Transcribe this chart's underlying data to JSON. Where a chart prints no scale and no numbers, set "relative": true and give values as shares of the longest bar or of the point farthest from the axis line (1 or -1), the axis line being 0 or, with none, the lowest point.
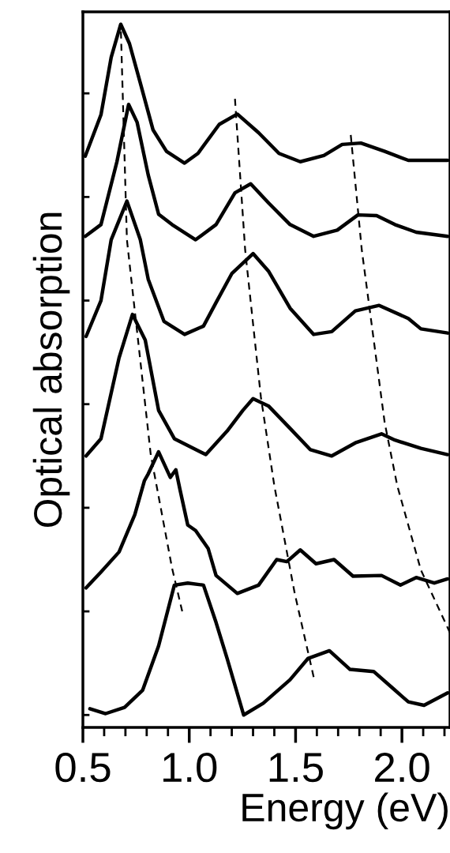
{
  "chart_data": {
    "type": "line",
    "xlabel": "Energy (eV)",
    "ylabel": "Optical absorption",
    "relative": true,
    "xlim": [
      0.5,
      2.226
    ],
    "xticks": [
      {
        "value": 0.5,
        "label": "0.5"
      },
      {
        "value": 1.0,
        "label": "1.0"
      },
      {
        "value": 1.5,
        "label": "1.5"
      },
      {
        "value": 2.0,
        "label": "2.0"
      }
    ],
    "tick_labels": "x",
    "grid": false,
    "marker": "none",
    "line_style": "solid",
    "series": [
      {
        "color": "#000000",
        "x": [
          0.511,
          0.585,
          0.633,
          0.678,
          0.719,
          0.77,
          0.83,
          0.893,
          0.978,
          1.041,
          1.141,
          1.226,
          1.326,
          1.422,
          1.522,
          1.633,
          1.719,
          1.807,
          1.919,
          2.03,
          2.215
        ],
        "values": [
          0.809,
          0.869,
          0.952,
          1.0,
          0.972,
          0.915,
          0.847,
          0.816,
          0.799,
          0.813,
          0.855,
          0.87,
          0.843,
          0.813,
          0.801,
          0.81,
          0.826,
          0.828,
          0.816,
          0.803,
          0.803
        ]
      },
      {
        "color": "#000000",
        "x": [
          0.511,
          0.585,
          0.66,
          0.715,
          0.755,
          0.807,
          0.856,
          0.919,
          1.03,
          1.126,
          1.215,
          1.289,
          1.374,
          1.474,
          1.585,
          1.696,
          1.793,
          1.881,
          1.967,
          2.067,
          2.215
        ],
        "values": [
          0.693,
          0.71,
          0.801,
          0.884,
          0.858,
          0.782,
          0.725,
          0.71,
          0.688,
          0.71,
          0.756,
          0.769,
          0.741,
          0.71,
          0.693,
          0.702,
          0.724,
          0.723,
          0.71,
          0.699,
          0.693
        ]
      },
      {
        "color": "#000000",
        "x": [
          0.515,
          0.585,
          0.633,
          0.707,
          0.77,
          0.807,
          0.881,
          0.978,
          1.067,
          1.126,
          1.2,
          1.3,
          1.374,
          1.474,
          1.585,
          1.67,
          1.781,
          1.893,
          2.03,
          2.089,
          2.215
        ],
        "values": [
          0.548,
          0.6,
          0.688,
          0.744,
          0.688,
          0.631,
          0.57,
          0.551,
          0.563,
          0.597,
          0.639,
          0.668,
          0.642,
          0.589,
          0.551,
          0.555,
          0.585,
          0.593,
          0.574,
          0.559,
          0.553
        ]
      },
      {
        "color": "#000000",
        "x": [
          0.515,
          0.585,
          0.67,
          0.733,
          0.793,
          0.856,
          0.93,
          1.078,
          1.178,
          1.252,
          1.3,
          1.374,
          1.474,
          1.57,
          1.67,
          1.781,
          1.904,
          1.967,
          2.089,
          2.215
        ],
        "values": [
          0.375,
          0.4,
          0.517,
          0.58,
          0.543,
          0.441,
          0.4,
          0.377,
          0.411,
          0.441,
          0.458,
          0.447,
          0.415,
          0.384,
          0.375,
          0.394,
          0.407,
          0.398,
          0.386,
          0.377
        ]
      },
      {
        "color": "#000000",
        "x": [
          0.515,
          0.585,
          0.67,
          0.744,
          0.789,
          0.807,
          0.856,
          0.911,
          0.937,
          0.956,
          0.993,
          1.03,
          1.089,
          1.126,
          1.226,
          1.326,
          1.411,
          1.459,
          1.522,
          1.596,
          1.681,
          1.77,
          1.904,
          1.993,
          2.067,
          2.152,
          2.215
        ],
        "values": [
          0.184,
          0.207,
          0.236,
          0.29,
          0.339,
          0.349,
          0.381,
          0.344,
          0.355,
          0.327,
          0.275,
          0.267,
          0.241,
          0.202,
          0.176,
          0.188,
          0.225,
          0.222,
          0.239,
          0.219,
          0.225,
          0.201,
          0.202,
          0.188,
          0.199,
          0.191,
          0.197
        ]
      },
      {
        "color": "#000000",
        "x": [
          0.533,
          0.607,
          0.696,
          0.781,
          0.856,
          0.93,
          0.993,
          1.067,
          1.126,
          1.178,
          1.256,
          1.348,
          1.474,
          1.559,
          1.659,
          1.756,
          1.867,
          1.967,
          2.03,
          2.104,
          2.215
        ],
        "values": [
          0.009,
          0.002,
          0.011,
          0.036,
          0.1,
          0.188,
          0.191,
          0.188,
          0.134,
          0.082,
          0.0,
          0.017,
          0.051,
          0.082,
          0.093,
          0.066,
          0.063,
          0.036,
          0.019,
          0.014,
          0.032
        ]
      },
      {
        "color": "#000000",
        "line_style": "dashed",
        "x": [
          0.678,
          0.707,
          0.752,
          0.819,
          0.919,
          0.967
        ],
        "values": [
          0.998,
          0.688,
          0.563,
          0.377,
          0.213,
          0.15
        ]
      },
      {
        "color": "#000000",
        "line_style": "dashed",
        "x": [
          1.215,
          1.263,
          1.337,
          1.4,
          1.496,
          1.585
        ],
        "values": [
          0.892,
          0.673,
          0.46,
          0.332,
          0.176,
          0.055
        ]
      },
      {
        "color": "#000000",
        "line_style": "dashed",
        "x": [
          1.759,
          1.811,
          1.919,
          1.978,
          2.089,
          2.226
        ],
        "values": [
          0.841,
          0.674,
          0.423,
          0.332,
          0.21,
          0.119
        ]
      }
    ]
  }
}
